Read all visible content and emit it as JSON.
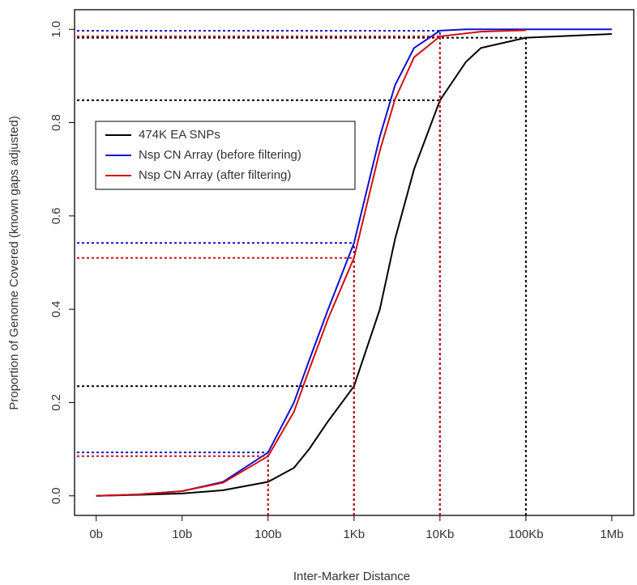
{
  "chart_data": {
    "type": "line",
    "xscale": "log",
    "xlabel": "Inter-Marker Distance",
    "ylabel": "Proportion of Genome Covered (known gaps adjusted)",
    "xlim": [
      0.56,
      1800000
    ],
    "ylim": [
      -0.042,
      1.042
    ],
    "xticks": [
      {
        "value": 1,
        "label": "0b"
      },
      {
        "value": 10,
        "label": "10b"
      },
      {
        "value": 100,
        "label": "100b"
      },
      {
        "value": 1000,
        "label": "1Kb"
      },
      {
        "value": 10000,
        "label": "10Kb"
      },
      {
        "value": 100000,
        "label": "100Kb"
      },
      {
        "value": 1000000,
        "label": "1Mb"
      }
    ],
    "yticks": [
      {
        "value": 0,
        "label": "0.0"
      },
      {
        "value": 0.2,
        "label": "0.2"
      },
      {
        "value": 0.4,
        "label": "0.4"
      },
      {
        "value": 0.6,
        "label": "0.6"
      },
      {
        "value": 0.8,
        "label": "0.8"
      },
      {
        "value": 1,
        "label": "1.0"
      }
    ],
    "series": [
      {
        "name": "474K EA SNPs",
        "color": "#000000",
        "x": [
          1,
          3,
          10,
          30,
          100,
          200,
          300,
          500,
          1000,
          2000,
          3000,
          5000,
          10000,
          20000,
          30000,
          100000,
          1000000
        ],
        "values": [
          0,
          0.002,
          0.005,
          0.012,
          0.03,
          0.06,
          0.1,
          0.16,
          0.235,
          0.4,
          0.55,
          0.7,
          0.848,
          0.93,
          0.96,
          0.982,
          0.99
        ],
        "guides": [
          {
            "x": 1000,
            "y": 0.235
          },
          {
            "x": 10000,
            "y": 0.848
          },
          {
            "x": 100000,
            "y": 0.982
          }
        ]
      },
      {
        "name": "Nsp CN Array (before filtering)",
        "color": "#1010d0",
        "x": [
          1,
          3,
          10,
          30,
          100,
          200,
          300,
          500,
          1000,
          2000,
          3000,
          5000,
          10000,
          20000,
          100000,
          1000000
        ],
        "values": [
          0,
          0.003,
          0.01,
          0.03,
          0.093,
          0.2,
          0.29,
          0.4,
          0.542,
          0.77,
          0.88,
          0.96,
          0.997,
          1,
          1,
          1
        ],
        "guides": [
          {
            "x": 100,
            "y": 0.093
          },
          {
            "x": 1000,
            "y": 0.542
          },
          {
            "x": 10000,
            "y": 0.997
          }
        ]
      },
      {
        "name": "Nsp CN Array (after filtering)",
        "color": "#d01010",
        "x": [
          1,
          3,
          10,
          30,
          100,
          200,
          300,
          500,
          1000,
          2000,
          3000,
          5000,
          10000,
          30000,
          100000
        ],
        "values": [
          0,
          0.003,
          0.01,
          0.028,
          0.085,
          0.18,
          0.27,
          0.38,
          0.51,
          0.74,
          0.85,
          0.94,
          0.985,
          0.995,
          0.998
        ],
        "guides": [
          {
            "x": 100,
            "y": 0.085
          },
          {
            "x": 1000,
            "y": 0.51
          },
          {
            "x": 10000,
            "y": 0.985
          }
        ]
      }
    ]
  }
}
